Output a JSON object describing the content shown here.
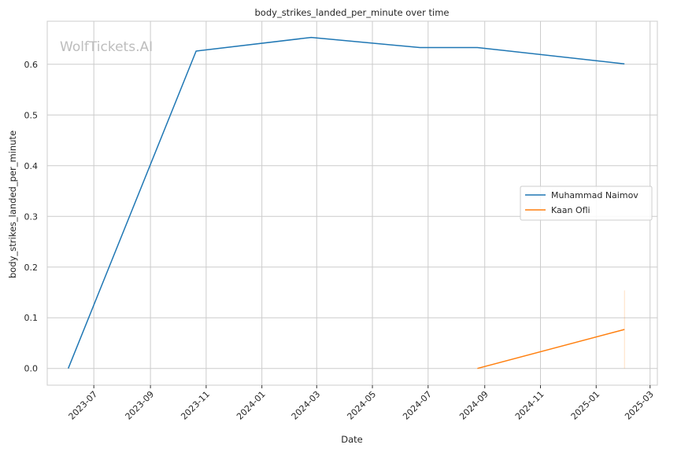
{
  "chart_data": {
    "type": "line",
    "title": "body_strikes_landed_per_minute over time",
    "xlabel": "Date",
    "ylabel": "body_strikes_landed_per_minute",
    "watermark": "WolfTickets.AI",
    "x_ticks": [
      "2023-07",
      "2023-09",
      "2023-11",
      "2024-01",
      "2024-03",
      "2024-05",
      "2024-07",
      "2024-09",
      "2024-11",
      "2025-01",
      "2025-03"
    ],
    "y_ticks": [
      "0.0",
      "0.1",
      "0.2",
      "0.3",
      "0.4",
      "0.5",
      "0.6"
    ],
    "xlim": [
      "2023-05-11",
      "2025-03-09"
    ],
    "ylim": [
      -0.033,
      0.685
    ],
    "grid": true,
    "legend_position": "center-right",
    "series": [
      {
        "name": "Muhammad Naimov",
        "color": "#1f77b4",
        "points": [
          {
            "x": "2023-06-03",
            "y": 0.0
          },
          {
            "x": "2023-10-21",
            "y": 0.626
          },
          {
            "x": "2024-02-24",
            "y": 0.653
          },
          {
            "x": "2024-06-22",
            "y": 0.633
          },
          {
            "x": "2024-08-24",
            "y": 0.633
          },
          {
            "x": "2025-02-01",
            "y": 0.601
          }
        ]
      },
      {
        "name": "Kaan Ofli",
        "color": "#ff7f0e",
        "points": [
          {
            "x": "2024-08-24",
            "y": 0.0
          },
          {
            "x": "2025-02-01",
            "y": 0.077
          }
        ],
        "band": {
          "x": "2025-02-01",
          "low": 0.0,
          "high": 0.154
        }
      }
    ]
  }
}
